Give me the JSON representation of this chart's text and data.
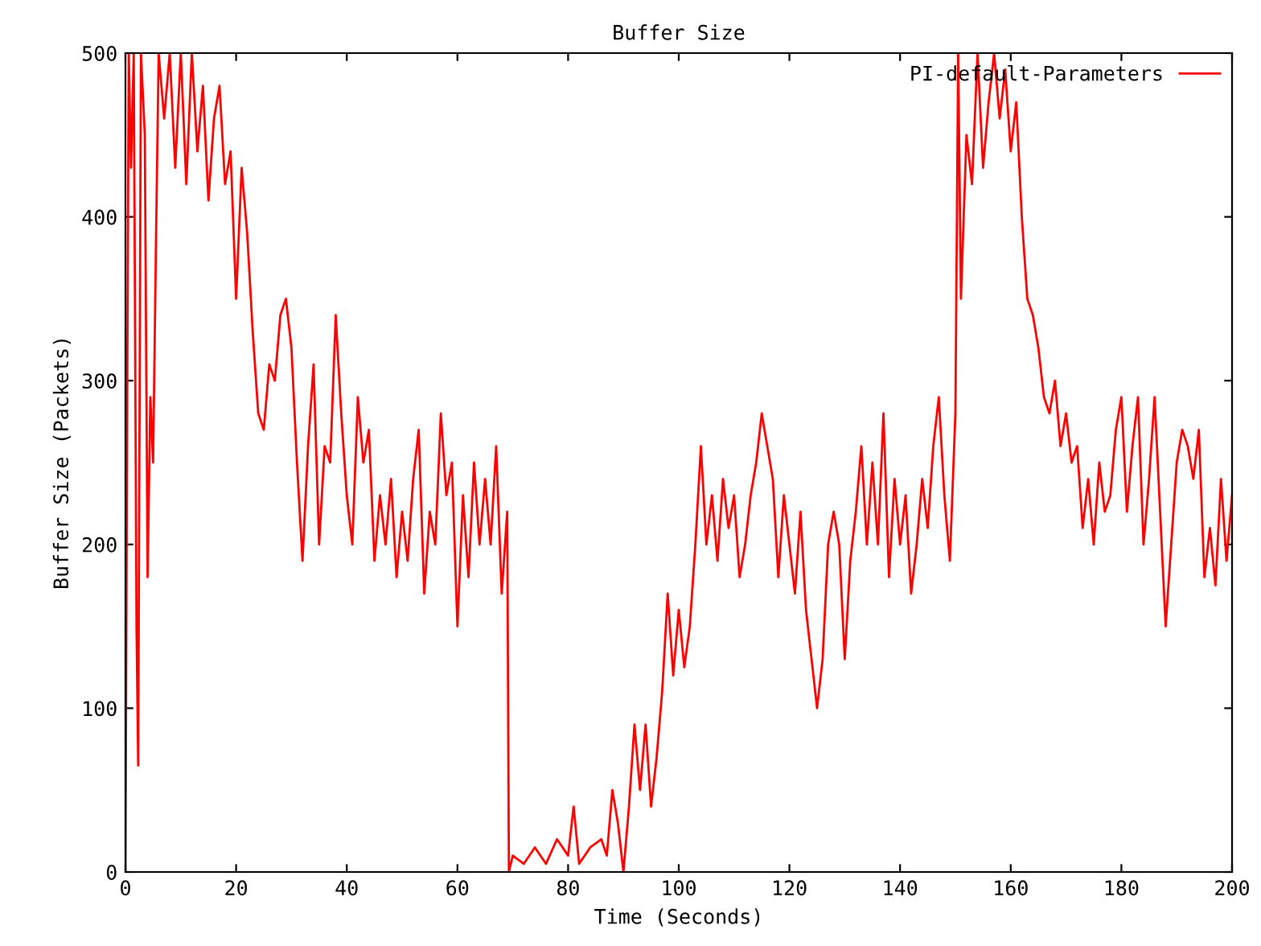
{
  "chart_data": {
    "type": "line",
    "title": "Buffer Size",
    "xlabel": "Time (Seconds)",
    "ylabel": "Buffer Size (Packets)",
    "xlim": [
      0,
      200
    ],
    "ylim": [
      0,
      500
    ],
    "xticks": [
      0,
      20,
      40,
      60,
      80,
      100,
      120,
      140,
      160,
      180,
      200
    ],
    "yticks": [
      0,
      100,
      200,
      300,
      400,
      500
    ],
    "grid": false,
    "legend": "top right",
    "marker": "none",
    "line_style": "solid",
    "series": [
      {
        "name": "PI-default-Parameters",
        "color": "#ff0000",
        "x": [
          0,
          0.3,
          0.6,
          1,
          1.5,
          2,
          2.3,
          2.8,
          3.5,
          4,
          4.5,
          5,
          5.5,
          6,
          7,
          8,
          9,
          10,
          11,
          12,
          13,
          14,
          15,
          16,
          17,
          18,
          19,
          20,
          21,
          22,
          23,
          24,
          25,
          26,
          27,
          28,
          29,
          30,
          31,
          32,
          33,
          34,
          35,
          36,
          37,
          38,
          39,
          40,
          41,
          42,
          43,
          44,
          45,
          46,
          47,
          48,
          49,
          50,
          51,
          52,
          53,
          54,
          55,
          56,
          57,
          58,
          59,
          60,
          61,
          62,
          63,
          64,
          65,
          66,
          67,
          68,
          69,
          69.3,
          70,
          72,
          74,
          76,
          78,
          80,
          81,
          82,
          84,
          86,
          87,
          88,
          89,
          90,
          91,
          92,
          93,
          94,
          95,
          96,
          97,
          98,
          99,
          100,
          101,
          102,
          103,
          104,
          105,
          106,
          107,
          108,
          109,
          110,
          111,
          112,
          113,
          114,
          115,
          116,
          117,
          118,
          119,
          120,
          121,
          122,
          123,
          124,
          125,
          126,
          127,
          128,
          129,
          130,
          131,
          132,
          133,
          134,
          135,
          136,
          137,
          138,
          139,
          140,
          141,
          142,
          143,
          144,
          145,
          146,
          147,
          148,
          149,
          150,
          150.5,
          151,
          152,
          153,
          154,
          155,
          156,
          157,
          158,
          159,
          160,
          161,
          162,
          163,
          164,
          165,
          166,
          167,
          168,
          169,
          170,
          171,
          172,
          173,
          174,
          175,
          176,
          177,
          178,
          179,
          180,
          181,
          182,
          183,
          184,
          185,
          186,
          187,
          188,
          189,
          190,
          191,
          192,
          193,
          194,
          195,
          196,
          197,
          198,
          199,
          200
        ],
        "values": [
          0,
          280,
          500,
          430,
          500,
          150,
          65,
          500,
          450,
          180,
          290,
          250,
          380,
          500,
          460,
          500,
          430,
          500,
          420,
          500,
          440,
          480,
          410,
          460,
          480,
          420,
          440,
          350,
          430,
          390,
          330,
          280,
          270,
          310,
          300,
          340,
          350,
          320,
          250,
          190,
          260,
          310,
          200,
          260,
          250,
          340,
          280,
          230,
          200,
          290,
          250,
          270,
          190,
          230,
          200,
          240,
          180,
          220,
          190,
          240,
          270,
          170,
          220,
          200,
          280,
          230,
          250,
          150,
          230,
          180,
          250,
          200,
          240,
          200,
          260,
          170,
          220,
          0,
          10,
          5,
          15,
          5,
          20,
          10,
          40,
          5,
          15,
          20,
          10,
          50,
          30,
          0,
          40,
          90,
          50,
          90,
          40,
          70,
          110,
          170,
          120,
          160,
          125,
          150,
          200,
          260,
          200,
          230,
          190,
          240,
          210,
          230,
          180,
          200,
          230,
          250,
          280,
          260,
          240,
          180,
          230,
          200,
          170,
          220,
          160,
          130,
          100,
          130,
          200,
          220,
          200,
          130,
          190,
          220,
          260,
          200,
          250,
          200,
          280,
          180,
          240,
          200,
          230,
          170,
          200,
          240,
          210,
          260,
          290,
          230,
          190,
          280,
          500,
          350,
          450,
          420,
          500,
          430,
          470,
          500,
          460,
          490,
          440,
          470,
          400,
          350,
          340,
          320,
          290,
          280,
          300,
          260,
          280,
          250,
          260,
          210,
          240,
          200,
          250,
          220,
          230,
          270,
          290,
          220,
          260,
          290,
          200,
          240,
          290,
          220,
          150,
          200,
          250,
          270,
          260,
          240,
          270,
          180,
          210,
          175,
          240,
          190,
          230
        ]
      }
    ]
  }
}
